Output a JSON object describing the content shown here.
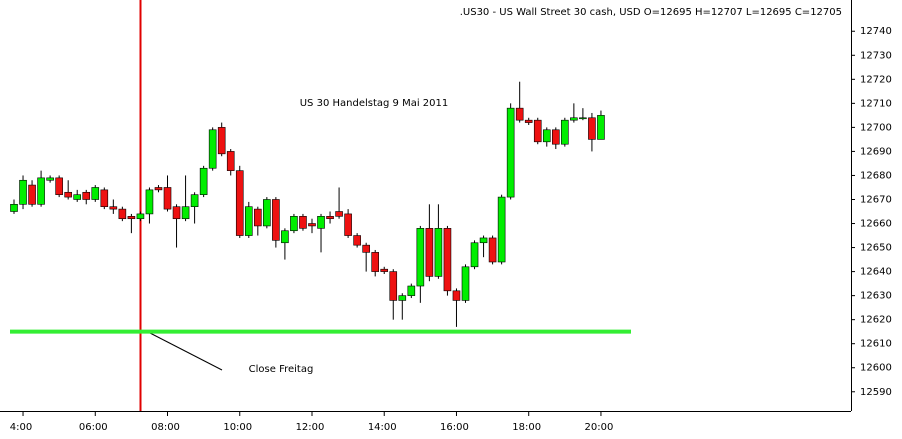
{
  "chart_data": {
    "type": "candlestick",
    "title": ".US30 - US Wall Street 30 cash, USD O=12695 H=12707 L=12695 C=12705",
    "annotations": [
      "US 30 Handelstag 9 Mai 2011",
      "Close Freitag"
    ],
    "categories": [
      null,
      "4:00",
      null,
      null,
      null,
      null,
      null,
      null,
      null,
      "06:00",
      null,
      null,
      null,
      null,
      null,
      null,
      null,
      "08:00",
      null,
      null,
      null,
      null,
      null,
      null,
      null,
      "10:00",
      null,
      null,
      null,
      null,
      null,
      null,
      null,
      "12:00",
      null,
      null,
      null,
      null,
      null,
      null,
      null,
      "14:00",
      null,
      null,
      null,
      null,
      null,
      null,
      null,
      "16:00",
      null,
      null,
      null,
      null,
      null,
      null,
      null,
      "18:00",
      null,
      null,
      null,
      null,
      null,
      null,
      null,
      "20:00"
    ],
    "open": [
      12665,
      12668,
      12676,
      12668,
      12678,
      12679,
      12673,
      12670,
      12673,
      12670,
      12674,
      12667,
      12666,
      12663,
      12662,
      12664,
      12675,
      12675,
      12667,
      12662,
      12667,
      12672,
      12683,
      12700,
      12690,
      12682,
      12655,
      12666,
      12659,
      12670,
      12652,
      12657,
      12663,
      12660,
      12658,
      12663,
      12665,
      12664,
      12655,
      12651,
      12648,
      12641,
      12640,
      12628,
      12630,
      12634,
      12658,
      12638,
      12658,
      12632,
      12628,
      12642,
      12652,
      12654,
      12644,
      12671,
      12708,
      12703,
      12703,
      12694,
      12699,
      12693,
      12703,
      12704,
      12704,
      12695
    ],
    "high": [
      12670,
      12680,
      12678,
      12682,
      12680,
      12680,
      12678,
      12674,
      12674,
      12676,
      12675,
      12670,
      12667,
      12664,
      12665,
      12675,
      12676,
      12680,
      12668,
      12680,
      12673,
      12684,
      12700,
      12702,
      12691,
      12684,
      12669,
      12667,
      12671,
      12671,
      12658,
      12664,
      12664,
      12662,
      12664,
      12665,
      12675,
      12666,
      12656,
      12652,
      12649,
      12642,
      12641,
      12631,
      12635,
      12659,
      12668,
      12668,
      12659,
      12633,
      12643,
      12653,
      12655,
      12655,
      12672,
      12710,
      12719,
      12704,
      12704,
      12700,
      12700,
      12704,
      12710,
      12708,
      12706,
      12707
    ],
    "low": [
      12664,
      12666,
      12667,
      12667,
      12677,
      12671,
      12670,
      12669,
      12668,
      12669,
      12666,
      12664,
      12661,
      12656,
      12661,
      12660,
      12673,
      12665,
      12650,
      12661,
      12660,
      12671,
      12682,
      12688,
      12680,
      12654,
      12654,
      12655,
      12658,
      12650,
      12645,
      12656,
      12657,
      12656,
      12648,
      12660,
      12662,
      12654,
      12650,
      12640,
      12638,
      12639,
      12620,
      12620,
      12629,
      12627,
      12636,
      12637,
      12630,
      12617,
      12627,
      12641,
      12646,
      12643,
      12643,
      12670,
      12702,
      12701,
      12693,
      12692,
      12691,
      12692,
      12702,
      12703,
      12690,
      12695
    ],
    "close": [
      12668,
      12678,
      12668,
      12679,
      12679,
      12672,
      12671,
      12672,
      12670,
      12675,
      12667,
      12666,
      12662,
      12662,
      12664,
      12674,
      12674,
      12666,
      12662,
      12667,
      12672,
      12683,
      12699,
      12689,
      12682,
      12655,
      12667,
      12659,
      12670,
      12653,
      12657,
      12663,
      12658,
      12659,
      12663,
      12662,
      12663,
      12655,
      12651,
      12648,
      12640,
      12640,
      12628,
      12630,
      12634,
      12658,
      12638,
      12658,
      12632,
      12628,
      12642,
      12652,
      12654,
      12644,
      12671,
      12708,
      12703,
      12702,
      12694,
      12699,
      12693,
      12703,
      12704,
      12704,
      12695,
      12705
    ],
    "up_color": "#00ee00",
    "down_color": "#ee1111",
    "close_level": 12615,
    "level_color": "#33ee33",
    "ylim": [
      12582,
      12753
    ],
    "yticks": [
      12590,
      12600,
      12610,
      12620,
      12630,
      12640,
      12650,
      12660,
      12670,
      12680,
      12690,
      12700,
      12710,
      12720,
      12730,
      12740
    ]
  }
}
